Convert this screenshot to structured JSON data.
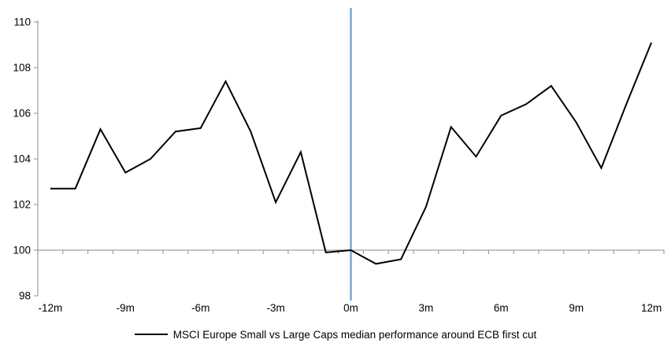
{
  "chart_data": {
    "type": "line",
    "title": "",
    "xlabel": "",
    "ylabel": "",
    "x_months": [
      -12,
      -11,
      -10,
      -9,
      -8,
      -7,
      -6,
      -5,
      -4,
      -3,
      -2,
      -1,
      0,
      1,
      2,
      3,
      4,
      5,
      6,
      7,
      8,
      9,
      10,
      11,
      12
    ],
    "series": [
      {
        "name": "MSCI Europe Small vs Large Caps median performance around ECB first cut",
        "color": "#000000",
        "values": [
          102.7,
          102.7,
          105.3,
          103.4,
          104.0,
          105.2,
          105.35,
          107.4,
          105.2,
          102.1,
          104.3,
          99.9,
          100.0,
          99.4,
          99.6,
          101.9,
          105.4,
          104.1,
          105.9,
          106.4,
          107.2,
          105.6,
          103.6,
          106.4,
          109.1
        ]
      }
    ],
    "x_tick_labels": [
      "-12m",
      "-9m",
      "-6m",
      "-3m",
      "0m",
      "3m",
      "6m",
      "9m",
      "12m"
    ],
    "x_tick_months": [
      -12,
      -9,
      -6,
      -3,
      0,
      3,
      6,
      9,
      12
    ],
    "y_ticks": [
      98,
      100,
      102,
      104,
      106,
      108,
      110
    ],
    "ylim": [
      98,
      110
    ],
    "xlim": [
      -12.5,
      12.5
    ],
    "x_axis_crosses_at_y": 100,
    "event_line_x": 0,
    "grid": false,
    "legend_position": "bottom",
    "colors": {
      "series": "#000000",
      "event_line": "#7DA7CD",
      "axis": "#A0A0A0",
      "text": "#000000",
      "background": "#FFFFFF"
    }
  }
}
